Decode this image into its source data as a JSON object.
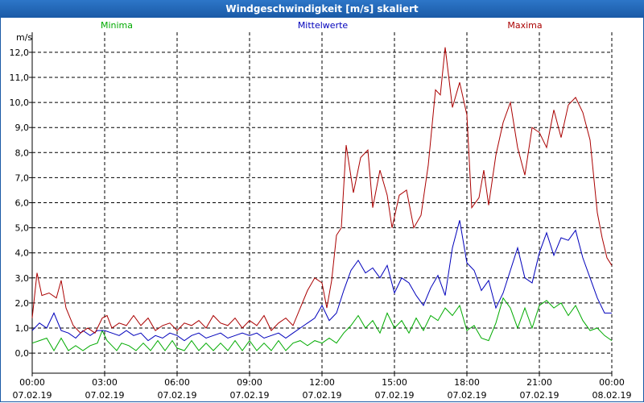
{
  "window": {
    "title": "Windgeschwindigkeit [m/s] skaliert"
  },
  "chart_data": {
    "type": "line",
    "title": "Windgeschwindigkeit [m/s] skaliert",
    "ylabel": "m/s",
    "xlabel": "",
    "ylim": [
      -0.8,
      12.8
    ],
    "xlim": [
      0,
      24
    ],
    "grid": true,
    "legend": "top",
    "y_ticks": [
      0,
      1,
      2,
      3,
      4,
      5,
      6,
      7,
      8,
      9,
      10,
      11,
      12
    ],
    "y_tick_labels": [
      "0,0",
      "1,0",
      "2,0",
      "3,0",
      "4,0",
      "5,0",
      "6,0",
      "7,0",
      "8,0",
      "9,0",
      "10,0",
      "11,0",
      "12,0"
    ],
    "x_ticks": [
      {
        "pos": 0,
        "time": "00:00",
        "date": "07.02.19"
      },
      {
        "pos": 3,
        "time": "03:00",
        "date": "07.02.19"
      },
      {
        "pos": 6,
        "time": "06:00",
        "date": "07.02.19"
      },
      {
        "pos": 9,
        "time": "09:00",
        "date": "07.02.19"
      },
      {
        "pos": 12,
        "time": "12:00",
        "date": "07.02.19"
      },
      {
        "pos": 15,
        "time": "15:00",
        "date": "07.02.19"
      },
      {
        "pos": 18,
        "time": "18:00",
        "date": "07.02.19"
      },
      {
        "pos": 21,
        "time": "21:00",
        "date": "07.02.19"
      },
      {
        "pos": 24,
        "time": "00:00",
        "date": "08.02.19"
      }
    ],
    "series": [
      {
        "name": "Minima",
        "color": "#00aa00",
        "points": [
          [
            0,
            0.4
          ],
          [
            0.3,
            0.5
          ],
          [
            0.6,
            0.6
          ],
          [
            0.9,
            0.1
          ],
          [
            1.2,
            0.6
          ],
          [
            1.5,
            0.1
          ],
          [
            1.8,
            0.3
          ],
          [
            2.1,
            0.1
          ],
          [
            2.4,
            0.3
          ],
          [
            2.7,
            0.4
          ],
          [
            2.9,
            0.9
          ],
          [
            3.1,
            0.5
          ],
          [
            3.3,
            0.3
          ],
          [
            3.5,
            0.1
          ],
          [
            3.7,
            0.4
          ],
          [
            4.0,
            0.3
          ],
          [
            4.3,
            0.1
          ],
          [
            4.6,
            0.4
          ],
          [
            4.9,
            0.1
          ],
          [
            5.2,
            0.5
          ],
          [
            5.5,
            0.1
          ],
          [
            5.8,
            0.5
          ],
          [
            6.0,
            0.2
          ],
          [
            6.3,
            0.1
          ],
          [
            6.6,
            0.5
          ],
          [
            6.9,
            0.1
          ],
          [
            7.2,
            0.4
          ],
          [
            7.5,
            0.1
          ],
          [
            7.8,
            0.4
          ],
          [
            8.1,
            0.1
          ],
          [
            8.4,
            0.5
          ],
          [
            8.7,
            0.1
          ],
          [
            9.0,
            0.5
          ],
          [
            9.3,
            0.1
          ],
          [
            9.6,
            0.4
          ],
          [
            9.9,
            0.1
          ],
          [
            10.2,
            0.5
          ],
          [
            10.5,
            0.1
          ],
          [
            10.8,
            0.4
          ],
          [
            11.1,
            0.5
          ],
          [
            11.4,
            0.3
          ],
          [
            11.7,
            0.5
          ],
          [
            12.0,
            0.4
          ],
          [
            12.3,
            0.6
          ],
          [
            12.6,
            0.4
          ],
          [
            12.9,
            0.8
          ],
          [
            13.2,
            1.1
          ],
          [
            13.5,
            1.5
          ],
          [
            13.8,
            1.0
          ],
          [
            14.1,
            1.3
          ],
          [
            14.4,
            0.8
          ],
          [
            14.7,
            1.6
          ],
          [
            15.0,
            1.0
          ],
          [
            15.3,
            1.3
          ],
          [
            15.6,
            0.8
          ],
          [
            15.9,
            1.4
          ],
          [
            16.2,
            0.9
          ],
          [
            16.5,
            1.5
          ],
          [
            16.8,
            1.3
          ],
          [
            17.1,
            1.8
          ],
          [
            17.4,
            1.5
          ],
          [
            17.7,
            1.9
          ],
          [
            18.0,
            0.9
          ],
          [
            18.3,
            1.1
          ],
          [
            18.6,
            0.6
          ],
          [
            18.9,
            0.5
          ],
          [
            19.2,
            1.2
          ],
          [
            19.5,
            2.2
          ],
          [
            19.8,
            1.8
          ],
          [
            20.1,
            1.0
          ],
          [
            20.4,
            1.8
          ],
          [
            20.7,
            1.0
          ],
          [
            21.0,
            1.9
          ],
          [
            21.3,
            2.1
          ],
          [
            21.6,
            1.8
          ],
          [
            21.9,
            2.0
          ],
          [
            22.2,
            1.5
          ],
          [
            22.5,
            1.9
          ],
          [
            22.8,
            1.3
          ],
          [
            23.1,
            0.9
          ],
          [
            23.4,
            1.0
          ],
          [
            23.7,
            0.7
          ],
          [
            24.0,
            0.5
          ]
        ]
      },
      {
        "name": "Mittelwerte",
        "color": "#0000bb",
        "points": [
          [
            0,
            0.9
          ],
          [
            0.3,
            1.2
          ],
          [
            0.6,
            1.0
          ],
          [
            0.9,
            1.6
          ],
          [
            1.2,
            0.9
          ],
          [
            1.5,
            0.8
          ],
          [
            1.8,
            0.6
          ],
          [
            2.1,
            0.9
          ],
          [
            2.4,
            0.7
          ],
          [
            2.7,
            0.9
          ],
          [
            3.0,
            0.9
          ],
          [
            3.3,
            0.8
          ],
          [
            3.6,
            0.7
          ],
          [
            3.9,
            0.9
          ],
          [
            4.2,
            0.7
          ],
          [
            4.5,
            0.8
          ],
          [
            4.8,
            0.5
          ],
          [
            5.1,
            0.7
          ],
          [
            5.4,
            0.6
          ],
          [
            5.7,
            0.8
          ],
          [
            6.0,
            0.7
          ],
          [
            6.3,
            0.5
          ],
          [
            6.6,
            0.7
          ],
          [
            6.9,
            0.8
          ],
          [
            7.2,
            0.6
          ],
          [
            7.5,
            0.7
          ],
          [
            7.8,
            0.8
          ],
          [
            8.1,
            0.6
          ],
          [
            8.4,
            0.7
          ],
          [
            8.7,
            0.8
          ],
          [
            9.0,
            0.7
          ],
          [
            9.3,
            0.8
          ],
          [
            9.6,
            0.6
          ],
          [
            9.9,
            0.7
          ],
          [
            10.2,
            0.8
          ],
          [
            10.5,
            0.6
          ],
          [
            10.8,
            0.8
          ],
          [
            11.1,
            1.0
          ],
          [
            11.4,
            1.2
          ],
          [
            11.7,
            1.4
          ],
          [
            12.0,
            1.9
          ],
          [
            12.3,
            1.3
          ],
          [
            12.6,
            1.6
          ],
          [
            12.9,
            2.5
          ],
          [
            13.2,
            3.3
          ],
          [
            13.5,
            3.7
          ],
          [
            13.8,
            3.2
          ],
          [
            14.1,
            3.4
          ],
          [
            14.4,
            3.0
          ],
          [
            14.7,
            3.5
          ],
          [
            15.0,
            2.4
          ],
          [
            15.3,
            3.0
          ],
          [
            15.6,
            2.8
          ],
          [
            15.9,
            2.3
          ],
          [
            16.2,
            1.9
          ],
          [
            16.5,
            2.6
          ],
          [
            16.8,
            3.1
          ],
          [
            17.1,
            2.3
          ],
          [
            17.4,
            4.2
          ],
          [
            17.7,
            5.3
          ],
          [
            18.0,
            3.6
          ],
          [
            18.3,
            3.3
          ],
          [
            18.6,
            2.5
          ],
          [
            18.9,
            2.9
          ],
          [
            19.2,
            1.8
          ],
          [
            19.5,
            2.4
          ],
          [
            19.8,
            3.3
          ],
          [
            20.1,
            4.2
          ],
          [
            20.4,
            3.0
          ],
          [
            20.7,
            2.8
          ],
          [
            21.0,
            4.0
          ],
          [
            21.3,
            4.8
          ],
          [
            21.6,
            3.9
          ],
          [
            21.9,
            4.6
          ],
          [
            22.2,
            4.5
          ],
          [
            22.5,
            4.9
          ],
          [
            22.8,
            3.8
          ],
          [
            23.1,
            3.0
          ],
          [
            23.4,
            2.2
          ],
          [
            23.7,
            1.6
          ],
          [
            24.0,
            1.6
          ]
        ]
      },
      {
        "name": "Maxima",
        "color": "#aa0000",
        "points": [
          [
            0,
            1.4
          ],
          [
            0.2,
            3.2
          ],
          [
            0.4,
            2.3
          ],
          [
            0.7,
            2.4
          ],
          [
            1.0,
            2.2
          ],
          [
            1.2,
            2.9
          ],
          [
            1.4,
            1.8
          ],
          [
            1.7,
            1.1
          ],
          [
            2.0,
            0.8
          ],
          [
            2.3,
            1.0
          ],
          [
            2.6,
            0.8
          ],
          [
            2.9,
            1.4
          ],
          [
            3.1,
            1.5
          ],
          [
            3.3,
            1.0
          ],
          [
            3.6,
            1.2
          ],
          [
            3.9,
            1.1
          ],
          [
            4.2,
            1.5
          ],
          [
            4.5,
            1.1
          ],
          [
            4.8,
            1.4
          ],
          [
            5.1,
            0.9
          ],
          [
            5.4,
            1.1
          ],
          [
            5.7,
            1.2
          ],
          [
            6.0,
            0.9
          ],
          [
            6.3,
            1.2
          ],
          [
            6.6,
            1.1
          ],
          [
            6.9,
            1.3
          ],
          [
            7.2,
            1.0
          ],
          [
            7.5,
            1.5
          ],
          [
            7.8,
            1.2
          ],
          [
            8.1,
            1.1
          ],
          [
            8.4,
            1.4
          ],
          [
            8.7,
            1.0
          ],
          [
            9.0,
            1.3
          ],
          [
            9.3,
            1.1
          ],
          [
            9.6,
            1.5
          ],
          [
            9.9,
            0.9
          ],
          [
            10.2,
            1.2
          ],
          [
            10.5,
            1.4
          ],
          [
            10.8,
            1.1
          ],
          [
            11.1,
            1.8
          ],
          [
            11.4,
            2.5
          ],
          [
            11.7,
            3.0
          ],
          [
            12.0,
            2.8
          ],
          [
            12.2,
            1.8
          ],
          [
            12.4,
            2.9
          ],
          [
            12.6,
            4.7
          ],
          [
            12.8,
            5.0
          ],
          [
            13.0,
            8.3
          ],
          [
            13.3,
            6.4
          ],
          [
            13.6,
            7.8
          ],
          [
            13.9,
            8.1
          ],
          [
            14.1,
            5.8
          ],
          [
            14.4,
            7.3
          ],
          [
            14.7,
            6.3
          ],
          [
            14.9,
            5.0
          ],
          [
            15.2,
            6.3
          ],
          [
            15.5,
            6.5
          ],
          [
            15.8,
            5.0
          ],
          [
            16.1,
            5.5
          ],
          [
            16.4,
            7.5
          ],
          [
            16.7,
            10.5
          ],
          [
            16.9,
            10.3
          ],
          [
            17.1,
            12.2
          ],
          [
            17.4,
            9.8
          ],
          [
            17.7,
            10.8
          ],
          [
            18.0,
            9.5
          ],
          [
            18.2,
            5.8
          ],
          [
            18.5,
            6.2
          ],
          [
            18.7,
            7.3
          ],
          [
            18.9,
            5.9
          ],
          [
            19.2,
            7.9
          ],
          [
            19.5,
            9.2
          ],
          [
            19.8,
            10.0
          ],
          [
            20.1,
            8.2
          ],
          [
            20.4,
            7.1
          ],
          [
            20.7,
            9.0
          ],
          [
            21.0,
            8.8
          ],
          [
            21.3,
            8.2
          ],
          [
            21.6,
            9.7
          ],
          [
            21.9,
            8.6
          ],
          [
            22.2,
            9.9
          ],
          [
            22.5,
            10.2
          ],
          [
            22.8,
            9.6
          ],
          [
            23.1,
            8.5
          ],
          [
            23.4,
            5.6
          ],
          [
            23.6,
            4.6
          ],
          [
            23.8,
            3.8
          ],
          [
            24.0,
            3.5
          ]
        ]
      }
    ]
  }
}
